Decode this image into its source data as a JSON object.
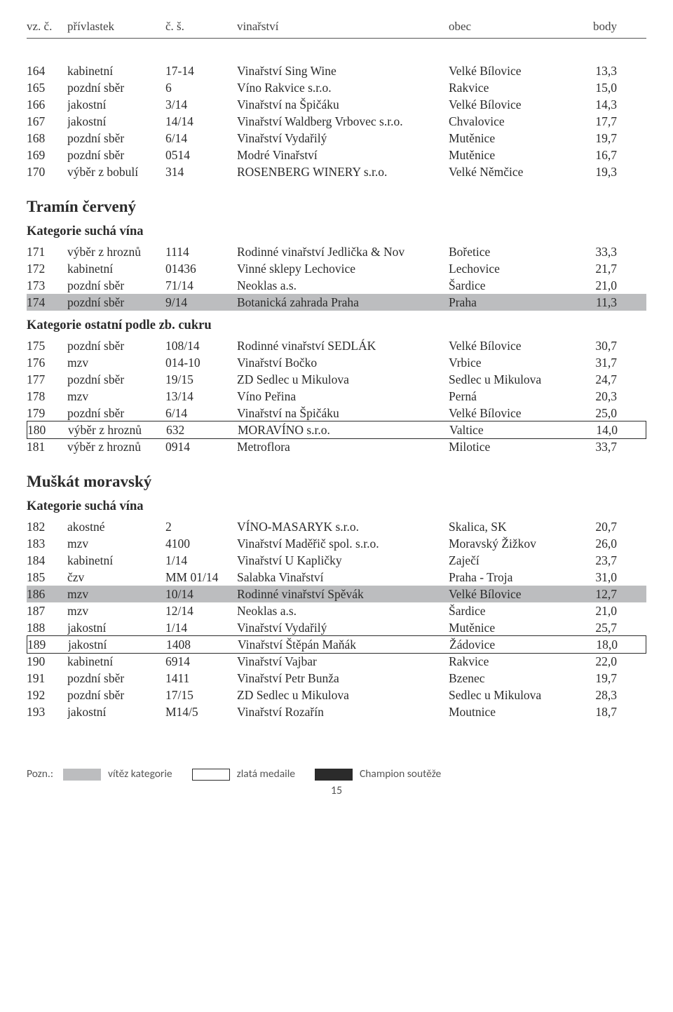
{
  "header": {
    "c1": "vz. č.",
    "c2": "přívlastek",
    "c3": "č. š.",
    "c4": "vinařství",
    "c5": "obec",
    "c6": "body"
  },
  "blocks": [
    {
      "type": "rows",
      "rows": [
        {
          "c1": "164",
          "c2": "kabinetní",
          "c3": "17-14",
          "c4": "Vinařství Sing Wine",
          "c5": "Velké Bílovice",
          "c6": "13,3"
        },
        {
          "c1": "165",
          "c2": "pozdní sběr",
          "c3": "6",
          "c4": "Víno Rakvice s.r.o.",
          "c5": "Rakvice",
          "c6": "15,0"
        },
        {
          "c1": "166",
          "c2": "jakostní",
          "c3": "3/14",
          "c4": "Vinařství na Špičáku",
          "c5": "Velké Bílovice",
          "c6": "14,3"
        },
        {
          "c1": "167",
          "c2": "jakostní",
          "c3": "14/14",
          "c4": "Vinařství Waldberg Vrbovec s.r.o.",
          "c5": "Chvalovice",
          "c6": "17,7"
        },
        {
          "c1": "168",
          "c2": "pozdní sběr",
          "c3": "6/14",
          "c4": "Vinařství Vydařilý",
          "c5": "Mutěnice",
          "c6": "19,7"
        },
        {
          "c1": "169",
          "c2": "pozdní sběr",
          "c3": "0514",
          "c4": "Modré Vinařství",
          "c5": "Mutěnice",
          "c6": "16,7"
        },
        {
          "c1": "170",
          "c2": "výběr z bobulí",
          "c3": "314",
          "c4": "ROSENBERG WINERY s.r.o.",
          "c5": "Velké Němčice",
          "c6": "19,3"
        }
      ]
    },
    {
      "type": "section",
      "text": "Tramín červený"
    },
    {
      "type": "category",
      "text": "Kategorie suchá vína"
    },
    {
      "type": "rows",
      "rows": [
        {
          "c1": "171",
          "c2": "výběr z hroznů",
          "c3": "1114",
          "c4": "Rodinné vinařství Jedlička & Nov",
          "c5": "Bořetice",
          "c6": "33,3"
        },
        {
          "c1": "172",
          "c2": "kabinetní",
          "c3": "01436",
          "c4": "Vinné sklepy Lechovice",
          "c5": "Lechovice",
          "c6": "21,7"
        },
        {
          "c1": "173",
          "c2": "pozdní sběr",
          "c3": "71/14",
          "c4": "Neoklas a.s.",
          "c5": "Šardice",
          "c6": "21,0"
        },
        {
          "c1": "174",
          "c2": "pozdní sběr",
          "c3": "9/14",
          "c4": "Botanická zahrada Praha",
          "c5": "Praha",
          "c6": "11,3",
          "winner": true
        }
      ]
    },
    {
      "type": "category",
      "text": "Kategorie ostatní podle zb. cukru"
    },
    {
      "type": "rows",
      "rows": [
        {
          "c1": "175",
          "c2": "pozdní sběr",
          "c3": "108/14",
          "c4": "Rodinné vinařství SEDLÁK",
          "c5": "Velké Bílovice",
          "c6": "30,7"
        },
        {
          "c1": "176",
          "c2": "mzv",
          "c3": "014-10",
          "c4": "Vinařství Bočko",
          "c5": "Vrbice",
          "c6": "31,7"
        },
        {
          "c1": "177",
          "c2": "pozdní sběr",
          "c3": "19/15",
          "c4": "ZD Sedlec u Mikulova",
          "c5": "Sedlec u Mikulova",
          "c6": "24,7"
        },
        {
          "c1": "178",
          "c2": "mzv",
          "c3": "13/14",
          "c4": "Víno Peřina",
          "c5": "Perná",
          "c6": "20,3"
        },
        {
          "c1": "179",
          "c2": "pozdní sběr",
          "c3": "6/14",
          "c4": "Vinařství na Špičáku",
          "c5": "Velké Bílovice",
          "c6": "25,0"
        },
        {
          "c1": "180",
          "c2": "výběr z hroznů",
          "c3": "632",
          "c4": "MORAVÍNO s.r.o.",
          "c5": "Valtice",
          "c6": "14,0",
          "gold": true
        },
        {
          "c1": "181",
          "c2": "výběr z hroznů",
          "c3": "0914",
          "c4": "Metroflora",
          "c5": "Milotice",
          "c6": "33,7"
        }
      ]
    },
    {
      "type": "section",
      "text": "Muškát moravský"
    },
    {
      "type": "category",
      "text": "Kategorie suchá vína"
    },
    {
      "type": "rows",
      "rows": [
        {
          "c1": "182",
          "c2": "akostné",
          "c3": "2",
          "c4": "VÍNO-MASARYK s.r.o.",
          "c5": "Skalica, SK",
          "c6": "20,7"
        },
        {
          "c1": "183",
          "c2": "mzv",
          "c3": "4100",
          "c4": "Vinařství Maděřič spol. s.r.o.",
          "c5": "Moravský Žižkov",
          "c6": "26,0"
        },
        {
          "c1": "184",
          "c2": "kabinetní",
          "c3": "1/14",
          "c4": "Vinařství U Kapličky",
          "c5": "Zaječí",
          "c6": "23,7"
        },
        {
          "c1": "185",
          "c2": "čzv",
          "c3": "MM 01/14",
          "c4": "Salabka Vinařství",
          "c5": "Praha - Troja",
          "c6": "31,0"
        },
        {
          "c1": "186",
          "c2": "mzv",
          "c3": "10/14",
          "c4": "Rodinné vinařství Spěvák",
          "c5": "Velké Bílovice",
          "c6": "12,7",
          "winner": true
        },
        {
          "c1": "187",
          "c2": "mzv",
          "c3": "12/14",
          "c4": "Neoklas a.s.",
          "c5": "Šardice",
          "c6": "21,0"
        },
        {
          "c1": "188",
          "c2": "jakostní",
          "c3": "1/14",
          "c4": "Vinařství Vydařilý",
          "c5": "Mutěnice",
          "c6": "25,7"
        },
        {
          "c1": "189",
          "c2": "jakostní",
          "c3": "1408",
          "c4": "Vinařství Štěpán Maňák",
          "c5": "Žádovice",
          "c6": "18,0",
          "gold": true
        },
        {
          "c1": "190",
          "c2": "kabinetní",
          "c3": "6914",
          "c4": "Vinařství Vajbar",
          "c5": "Rakvice",
          "c6": "22,0"
        },
        {
          "c1": "191",
          "c2": "pozdní sběr",
          "c3": "1411",
          "c4": "Vinařství Petr Bunža",
          "c5": "Bzenec",
          "c6": "19,7"
        },
        {
          "c1": "192",
          "c2": "pozdní sběr",
          "c3": "17/15",
          "c4": "ZD Sedlec u Mikulova",
          "c5": "Sedlec u Mikulova",
          "c6": "28,3"
        },
        {
          "c1": "193",
          "c2": "jakostní",
          "c3": "M14/5",
          "c4": "Vinařství Rozařín",
          "c5": "Moutnice",
          "c6": "18,7"
        }
      ]
    }
  ],
  "footer": {
    "label": "Pozn.:",
    "legend": [
      {
        "cls": "lb-winner",
        "text": "vítěz kategorie"
      },
      {
        "cls": "lb-gold",
        "text": "zlatá medaile"
      },
      {
        "cls": "lb-champ",
        "text": "Champion soutěže"
      }
    ],
    "page": "15"
  }
}
